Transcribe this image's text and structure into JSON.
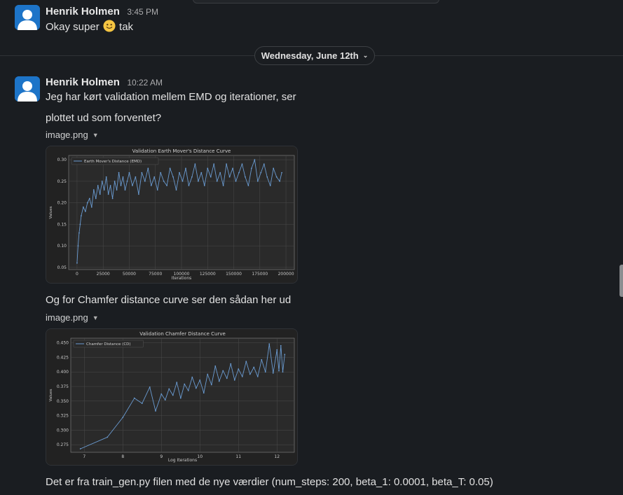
{
  "messages": [
    {
      "author": "Henrik Holmen",
      "time": "3:45 PM",
      "text_before_emoji": "Okay super",
      "emoji": "slightly-smiling-face",
      "text_after_emoji": "tak"
    },
    {
      "author": "Henrik Holmen",
      "time": "10:22 AM",
      "lines": [
        "Jeg har kørt validation mellem EMD og iterationer, ser",
        "plottet ud som forventet?"
      ],
      "attachment1": "image.png",
      "caption2": "Og for Chamfer distance curve ser den sådan her ud",
      "attachment2": "image.png",
      "caption3": "Det er fra train_gen.py filen med de nye værdier (num_steps: 200, beta_1: 0.0001, beta_T: 0.05)"
    }
  ],
  "date_divider": {
    "label": "Wednesday, June 12th"
  },
  "colors": {
    "background": "#1a1d21",
    "plot_line": "#6a9bd1",
    "avatar": "#1d74c8"
  },
  "chart_data": [
    {
      "type": "line",
      "title": "Validation Earth Mover's Distance Curve",
      "xlabel": "Iterations",
      "ylabel": "Values",
      "legend": [
        "Earth Mover's Distance (EMD)"
      ],
      "legend_position": "top-left",
      "grid": true,
      "xlim": [
        -8000,
        208000
      ],
      "ylim": [
        0.045,
        0.31
      ],
      "xticks": [
        0,
        25000,
        50000,
        75000,
        100000,
        125000,
        150000,
        175000,
        200000
      ],
      "xtick_labels": [
        "0",
        "25000",
        "50000",
        "75000",
        "100000",
        "125000",
        "150000",
        "175000",
        "200000"
      ],
      "yticks": [
        0.05,
        0.1,
        0.15,
        0.2,
        0.25,
        0.3
      ],
      "ytick_labels": [
        "0.05",
        "0.10",
        "0.15",
        "0.20",
        "0.25",
        "0.30"
      ],
      "series": [
        {
          "name": "Earth Mover's Distance (EMD)",
          "x": [
            0,
            1000,
            2000,
            3000,
            4000,
            6000,
            8000,
            10000,
            12000,
            14000,
            16000,
            18000,
            20000,
            22000,
            24000,
            26000,
            28000,
            30000,
            32000,
            34000,
            36000,
            38000,
            40000,
            42000,
            44000,
            46000,
            48000,
            50000,
            53000,
            56000,
            59000,
            62000,
            65000,
            68000,
            71000,
            74000,
            77000,
            80000,
            83000,
            86000,
            89000,
            92000,
            95000,
            98000,
            101000,
            104000,
            107000,
            110000,
            113000,
            116000,
            119000,
            122000,
            125000,
            128000,
            131000,
            134000,
            137000,
            140000,
            143000,
            146000,
            149000,
            152000,
            155000,
            158000,
            161000,
            164000,
            167000,
            170000,
            173000,
            176000,
            179000,
            182000,
            185000,
            188000,
            191000,
            194000,
            196000
          ],
          "y": [
            0.06,
            0.1,
            0.13,
            0.15,
            0.17,
            0.19,
            0.18,
            0.2,
            0.21,
            0.19,
            0.23,
            0.21,
            0.24,
            0.22,
            0.25,
            0.23,
            0.26,
            0.22,
            0.24,
            0.21,
            0.25,
            0.23,
            0.27,
            0.24,
            0.26,
            0.23,
            0.25,
            0.27,
            0.24,
            0.26,
            0.22,
            0.27,
            0.25,
            0.28,
            0.24,
            0.26,
            0.23,
            0.27,
            0.25,
            0.24,
            0.28,
            0.26,
            0.23,
            0.27,
            0.25,
            0.28,
            0.24,
            0.26,
            0.29,
            0.25,
            0.27,
            0.24,
            0.28,
            0.26,
            0.29,
            0.25,
            0.27,
            0.24,
            0.29,
            0.26,
            0.28,
            0.25,
            0.27,
            0.29,
            0.26,
            0.24,
            0.28,
            0.3,
            0.25,
            0.27,
            0.29,
            0.26,
            0.24,
            0.28,
            0.26,
            0.25,
            0.27
          ]
        }
      ]
    },
    {
      "type": "line",
      "title": "Validation Chamfer Distance Curve",
      "xlabel": "Log Iterations",
      "ylabel": "Values",
      "legend": [
        "Chamfer Distance (CD)"
      ],
      "legend_position": "top-left",
      "grid": true,
      "xlim": [
        6.65,
        12.45
      ],
      "ylim": [
        0.262,
        0.458
      ],
      "xticks": [
        7,
        8,
        9,
        10,
        11,
        12
      ],
      "xtick_labels": [
        "7",
        "8",
        "9",
        "10",
        "11",
        "12"
      ],
      "yticks": [
        0.275,
        0.3,
        0.325,
        0.35,
        0.375,
        0.4,
        0.425,
        0.45
      ],
      "ytick_labels": [
        "0.275",
        "0.300",
        "0.325",
        "0.350",
        "0.375",
        "0.400",
        "0.425",
        "0.450"
      ],
      "series": [
        {
          "name": "Chamfer Distance (CD)",
          "x": [
            6.9,
            7.6,
            8.0,
            8.3,
            8.5,
            8.7,
            8.85,
            9.0,
            9.1,
            9.2,
            9.3,
            9.4,
            9.5,
            9.6,
            9.7,
            9.8,
            9.9,
            10.0,
            10.1,
            10.2,
            10.3,
            10.4,
            10.5,
            10.6,
            10.7,
            10.8,
            10.9,
            11.0,
            11.1,
            11.2,
            11.3,
            11.4,
            11.5,
            11.6,
            11.7,
            11.8,
            11.9,
            12.0,
            12.05,
            12.1,
            12.15,
            12.2
          ],
          "y": [
            0.268,
            0.288,
            0.322,
            0.355,
            0.346,
            0.374,
            0.333,
            0.362,
            0.352,
            0.371,
            0.36,
            0.382,
            0.355,
            0.379,
            0.368,
            0.391,
            0.372,
            0.386,
            0.364,
            0.396,
            0.378,
            0.41,
            0.384,
            0.402,
            0.389,
            0.414,
            0.386,
            0.405,
            0.392,
            0.418,
            0.396,
            0.408,
            0.392,
            0.421,
            0.4,
            0.448,
            0.398,
            0.438,
            0.402,
            0.445,
            0.4,
            0.43
          ]
        }
      ]
    }
  ]
}
